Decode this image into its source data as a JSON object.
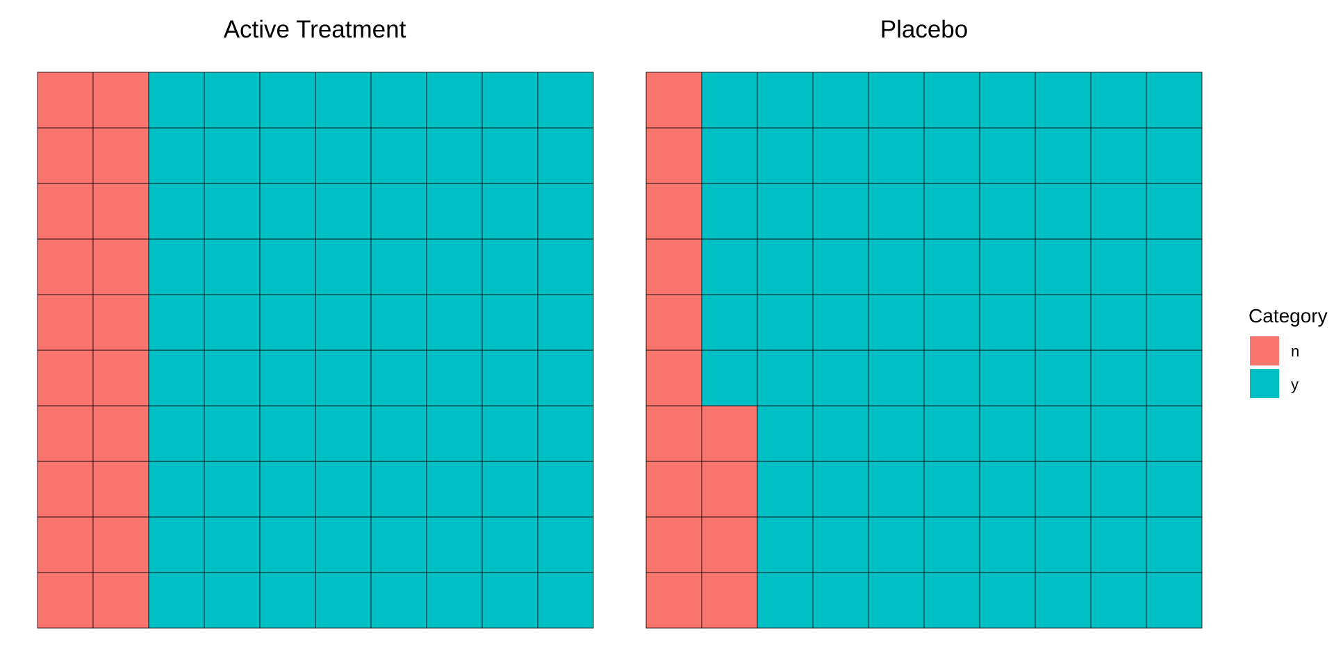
{
  "chart_data": {
    "type": "waffle",
    "grid": {
      "rows": 10,
      "cols": 10
    },
    "panels": [
      {
        "title": "Active Treatment",
        "counts": {
          "n": 20,
          "y": 80
        }
      },
      {
        "title": "Placebo",
        "counts": {
          "n": 14,
          "y": 86
        }
      }
    ],
    "legend": {
      "title": "Category",
      "placement": "right",
      "items": [
        {
          "key": "n",
          "label": "n",
          "color": "#F8766D"
        },
        {
          "key": "y",
          "label": "y",
          "color": "#00BFC4"
        }
      ]
    },
    "fill_order": "column-major, bottom-to-top, left-to-right",
    "cell_border_color": "#000000",
    "grid_lines": false
  }
}
